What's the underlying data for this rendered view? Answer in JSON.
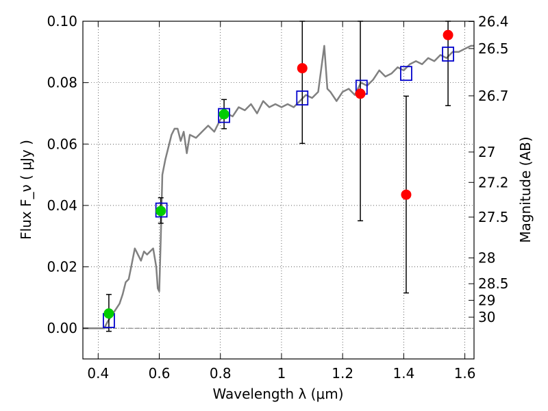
{
  "chart_data": {
    "type": "scatter",
    "xlabel": "Wavelength  λ (μm)",
    "ylabel": "Flux  F_ν  ( μJy )",
    "ylabel_right": "Magnitude (AB)",
    "xlim": [
      0.35,
      1.63
    ],
    "ylim": [
      -0.01,
      0.1
    ],
    "grid": true,
    "x_ticks": [
      0.4,
      0.6,
      0.8,
      1.0,
      1.2,
      1.4,
      1.6
    ],
    "x_tick_labels": [
      "0.4",
      "0.6",
      "0.8",
      "1",
      "1.2",
      "1.4",
      "1.6"
    ],
    "y_ticks": [
      0.0,
      0.02,
      0.04,
      0.06,
      0.08,
      0.1
    ],
    "y_tick_labels": [
      "0.00",
      "0.02",
      "0.04",
      "0.06",
      "0.08",
      "0.10"
    ],
    "right_ticks": [
      {
        "flux": 0.0999,
        "label": "26.4"
      },
      {
        "flux": 0.0911,
        "label": "26.5"
      },
      {
        "flux": 0.0757,
        "label": "26.7"
      },
      {
        "flux": 0.0574,
        "label": "27"
      },
      {
        "flux": 0.0475,
        "label": "27.2"
      },
      {
        "flux": 0.0362,
        "label": "27.5"
      },
      {
        "flux": 0.0229,
        "label": "28"
      },
      {
        "flux": 0.0145,
        "label": "28.5"
      },
      {
        "flux": 0.0091,
        "label": "29"
      },
      {
        "flux": 0.0036,
        "label": "30"
      }
    ],
    "model_sed": {
      "color": "#808080",
      "x": [
        0.35,
        0.42,
        0.43,
        0.45,
        0.47,
        0.48,
        0.49,
        0.5,
        0.51,
        0.52,
        0.525,
        0.53,
        0.54,
        0.55,
        0.56,
        0.57,
        0.58,
        0.59,
        0.595,
        0.6,
        0.605,
        0.61,
        0.62,
        0.63,
        0.64,
        0.65,
        0.66,
        0.67,
        0.68,
        0.69,
        0.7,
        0.72,
        0.74,
        0.76,
        0.78,
        0.8,
        0.82,
        0.84,
        0.86,
        0.88,
        0.9,
        0.92,
        0.94,
        0.96,
        0.98,
        1.0,
        1.02,
        1.04,
        1.06,
        1.08,
        1.1,
        1.12,
        1.14,
        1.15,
        1.16,
        1.18,
        1.2,
        1.22,
        1.24,
        1.26,
        1.28,
        1.3,
        1.32,
        1.34,
        1.36,
        1.38,
        1.4,
        1.42,
        1.44,
        1.46,
        1.48,
        1.5,
        1.52,
        1.54,
        1.56,
        1.58,
        1.6,
        1.62,
        1.63
      ],
      "y": [
        0.0,
        0.0,
        0.002,
        0.005,
        0.008,
        0.011,
        0.015,
        0.016,
        0.021,
        0.026,
        0.025,
        0.024,
        0.022,
        0.025,
        0.024,
        0.025,
        0.026,
        0.02,
        0.013,
        0.012,
        0.03,
        0.05,
        0.055,
        0.059,
        0.063,
        0.065,
        0.065,
        0.061,
        0.064,
        0.057,
        0.063,
        0.062,
        0.064,
        0.066,
        0.064,
        0.068,
        0.07,
        0.069,
        0.072,
        0.071,
        0.073,
        0.07,
        0.074,
        0.072,
        0.073,
        0.072,
        0.073,
        0.072,
        0.074,
        0.076,
        0.075,
        0.077,
        0.092,
        0.078,
        0.077,
        0.074,
        0.077,
        0.078,
        0.076,
        0.08,
        0.079,
        0.081,
        0.084,
        0.082,
        0.083,
        0.085,
        0.084,
        0.086,
        0.087,
        0.086,
        0.088,
        0.087,
        0.089,
        0.088,
        0.09,
        0.09,
        0.091,
        0.092,
        0.092
      ]
    },
    "observed_green": {
      "color": "#00cc00",
      "points": [
        {
          "x": 0.435,
          "y": 0.0048,
          "err_low": 0.0058,
          "err_high": 0.0062
        },
        {
          "x": 0.605,
          "y": 0.0382,
          "err_low": 0.004,
          "err_high": 0.0043
        },
        {
          "x": 0.812,
          "y": 0.0697,
          "err_low": 0.0047,
          "err_high": 0.0048
        }
      ]
    },
    "observed_red": {
      "color": "#ff0000",
      "points": [
        {
          "x": 1.068,
          "y": 0.0847,
          "err_low": 0.0245,
          "err_high": 0.0153
        },
        {
          "x": 1.258,
          "y": 0.0764,
          "err_low": 0.0414,
          "err_high": 0.0236
        },
        {
          "x": 1.408,
          "y": 0.0435,
          "err_low": 0.032,
          "err_high": 0.0321
        },
        {
          "x": 1.545,
          "y": 0.0955,
          "err_low": 0.023,
          "err_high": 0.0045
        }
      ]
    },
    "model_bands": {
      "color": "#0000cc",
      "points": [
        {
          "x": 0.435,
          "y": 0.0025
        },
        {
          "x": 0.607,
          "y": 0.0385
        },
        {
          "x": 0.812,
          "y": 0.0693
        },
        {
          "x": 1.068,
          "y": 0.075
        },
        {
          "x": 1.262,
          "y": 0.0785
        },
        {
          "x": 1.408,
          "y": 0.083
        },
        {
          "x": 1.545,
          "y": 0.0893
        }
      ]
    }
  }
}
